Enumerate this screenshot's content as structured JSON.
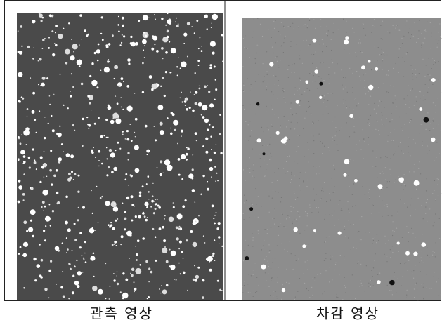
{
  "panels": [
    {
      "caption": "관측 영상"
    },
    {
      "caption": "차감 영상"
    }
  ]
}
